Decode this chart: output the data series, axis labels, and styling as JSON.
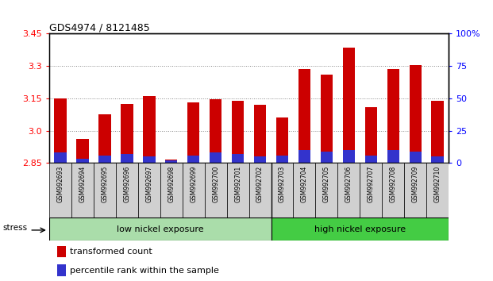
{
  "title": "GDS4974 / 8121485",
  "samples": [
    "GSM992693",
    "GSM992694",
    "GSM992695",
    "GSM992696",
    "GSM992697",
    "GSM992698",
    "GSM992699",
    "GSM992700",
    "GSM992701",
    "GSM992702",
    "GSM992703",
    "GSM992704",
    "GSM992705",
    "GSM992706",
    "GSM992707",
    "GSM992708",
    "GSM992709",
    "GSM992710"
  ],
  "red_values": [
    3.148,
    2.962,
    3.075,
    3.122,
    3.16,
    2.867,
    3.13,
    3.147,
    3.138,
    3.12,
    3.062,
    3.287,
    3.262,
    3.385,
    3.108,
    3.285,
    3.305,
    3.14
  ],
  "blue_percentiles": [
    8,
    3,
    6,
    7,
    5,
    2,
    6,
    8,
    7,
    5,
    6,
    10,
    9,
    10,
    6,
    10,
    9,
    5
  ],
  "ylim_left": [
    2.85,
    3.45
  ],
  "ylim_right": [
    0,
    100
  ],
  "right_ticks": [
    0,
    25,
    50,
    75,
    100
  ],
  "right_tick_labels": [
    "0",
    "25",
    "50",
    "75",
    "100%"
  ],
  "left_ticks": [
    2.85,
    3.0,
    3.15,
    3.3,
    3.45
  ],
  "group1_label": "low nickel exposure",
  "group2_label": "high nickel exposure",
  "group1_count": 10,
  "stress_label": "stress",
  "bar_color": "#cc0000",
  "blue_color": "#3333cc",
  "group1_bg": "#aaddaa",
  "group2_bg": "#44cc44",
  "legend_red": "transformed count",
  "legend_blue": "percentile rank within the sample",
  "grid_color": "#888888",
  "bar_width": 0.55
}
